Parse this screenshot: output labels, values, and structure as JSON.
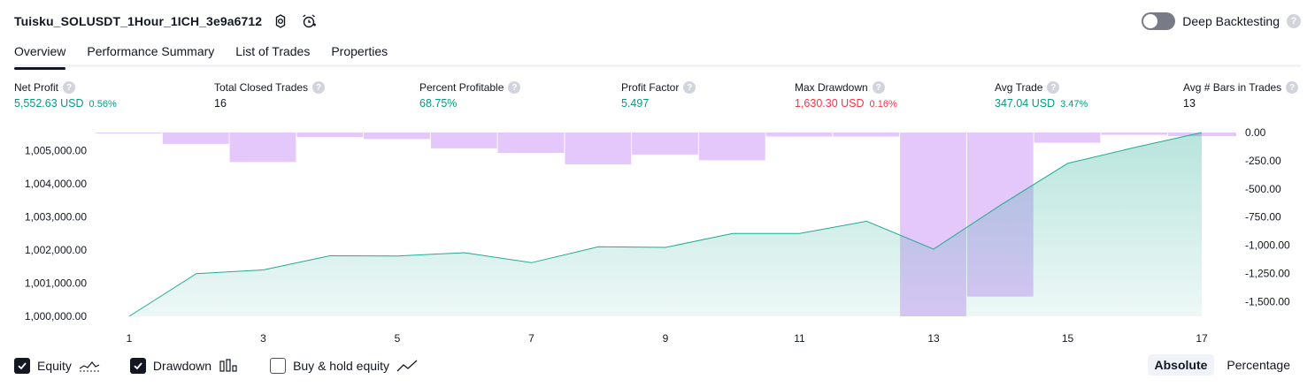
{
  "header": {
    "title": "Tuisku_SOLUSDT_1Hour_1ICH_3e9a6712",
    "icons": [
      "gear-icon",
      "alarm-add-icon"
    ]
  },
  "deep_backtesting": {
    "label": "Deep Backtesting",
    "enabled": false,
    "help": "?"
  },
  "tabs": [
    {
      "label": "Overview",
      "active": true
    },
    {
      "label": "Performance Summary",
      "active": false
    },
    {
      "label": "List of Trades",
      "active": false
    },
    {
      "label": "Properties",
      "active": false
    }
  ],
  "metrics": {
    "net_profit": {
      "label": "Net Profit",
      "value": "5,552.63 USD",
      "pct": "0.56%",
      "color": "#089981"
    },
    "total_closed_trades": {
      "label": "Total Closed Trades",
      "value": "16"
    },
    "percent_profitable": {
      "label": "Percent Profitable",
      "value": "68.75%",
      "color": "#089981"
    },
    "profit_factor": {
      "label": "Profit Factor",
      "value": "5.497",
      "color": "#089981"
    },
    "max_drawdown": {
      "label": "Max Drawdown",
      "value": "1,630.30 USD",
      "pct": "0.16%",
      "color": "#f23645"
    },
    "avg_trade": {
      "label": "Avg Trade",
      "value": "347.04 USD",
      "pct": "3.47%",
      "color": "#089981"
    },
    "avg_bars": {
      "label": "Avg # Bars in Trades",
      "value": "13"
    }
  },
  "chart_data": {
    "type": "line",
    "x": [
      1,
      2,
      3,
      4,
      5,
      6,
      7,
      8,
      9,
      10,
      11,
      12,
      13,
      14,
      15,
      16,
      17
    ],
    "x_ticks": [
      "1",
      "3",
      "5",
      "7",
      "9",
      "11",
      "13",
      "15",
      "17"
    ],
    "series": [
      {
        "name": "Equity",
        "type": "area",
        "axis": "left",
        "values": [
          1000000,
          1001290,
          1001400,
          1001830,
          1001820,
          1001920,
          1001620,
          1002100,
          1002080,
          1002500,
          1002500,
          1002870,
          1002030,
          1003360,
          1004620,
          1005100,
          1005550
        ]
      },
      {
        "name": "Drawdown",
        "type": "bar",
        "axis": "right",
        "values": [
          0,
          -100,
          -262,
          -40,
          -57,
          -140,
          -180,
          -282,
          -195,
          -245,
          -35,
          -35,
          -1630,
          -1455,
          -90,
          -20,
          -32
        ]
      }
    ],
    "left_axis": {
      "ticks": [
        "1,000,000.00",
        "1,001,000.00",
        "1,002,000.00",
        "1,003,000.00",
        "1,004,000.00",
        "1,005,000.00"
      ],
      "ylim": [
        1000000,
        1005550
      ]
    },
    "right_axis": {
      "ticks": [
        "0.00",
        "-250.00",
        "-500.00",
        "-750.00",
        "-1,000.00",
        "-1,250.00",
        "-1,500.00"
      ],
      "ylim": [
        -1630,
        0
      ]
    },
    "colors": {
      "equity_line": "#22ab94",
      "equity_fill": "#cdeee6",
      "drawdown_bar": "#e1c2fb"
    }
  },
  "legend": [
    {
      "label": "Equity",
      "checked": true,
      "icon": "equity-line-icon"
    },
    {
      "label": "Drawdown",
      "checked": true,
      "icon": "bars-icon"
    },
    {
      "label": "Buy & hold equity",
      "checked": false,
      "icon": "trend-line-icon"
    }
  ],
  "mode": {
    "absolute": "Absolute",
    "percentage": "Percentage",
    "selected": "Absolute"
  }
}
